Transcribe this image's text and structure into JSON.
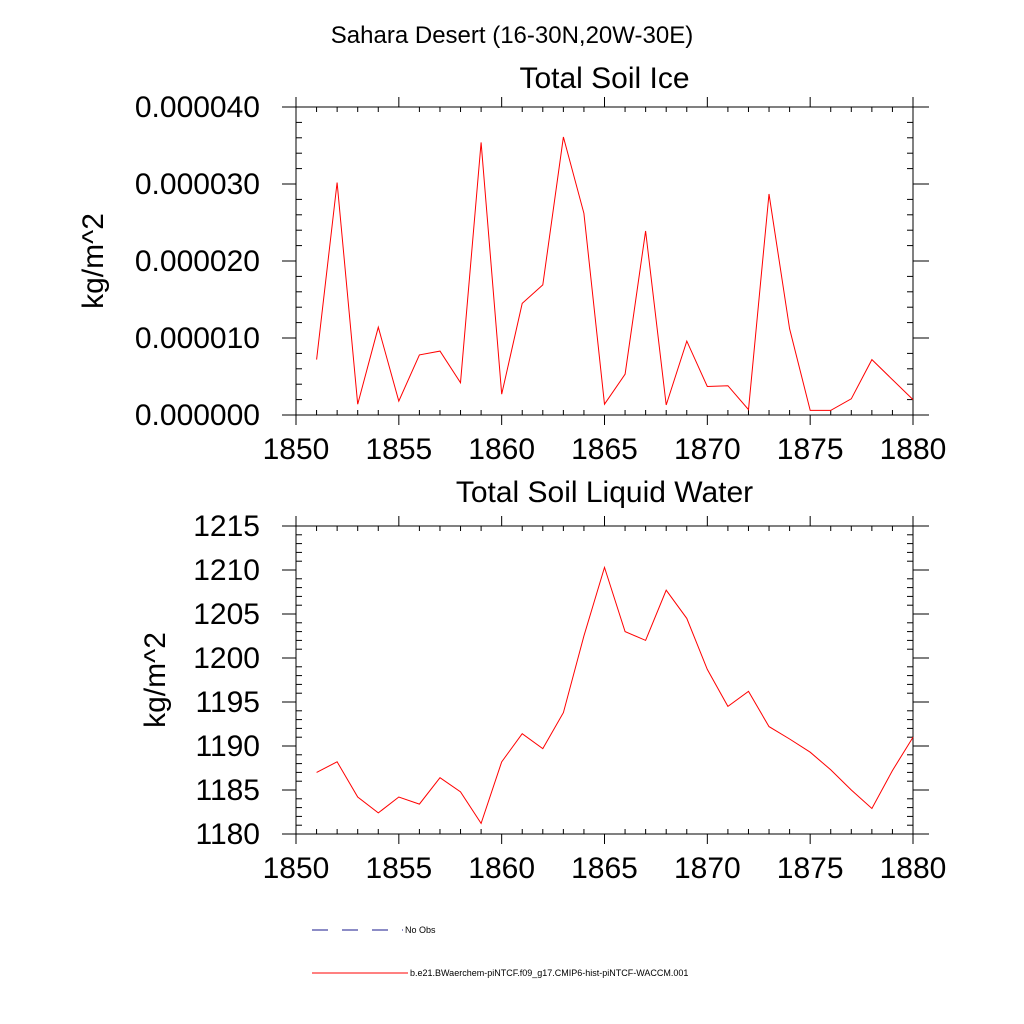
{
  "figure_title": "Sahara Desert (16-30N,20W-30E)",
  "colors": {
    "series": "#ff0000",
    "obs": "#1a1a8c",
    "axis": "#000000"
  },
  "legend": {
    "obs_label": "No Obs",
    "model_label": "b.e21.BWaerchem-piNTCF.f09_g17.CMIP6-hist-piNTCF-WACCM.001"
  },
  "chart_data": [
    {
      "type": "line",
      "title": "Total Soil Ice",
      "xlabel": "",
      "ylabel": "kg/m^2",
      "xlim": [
        1850,
        1880
      ],
      "ylim": [
        0,
        4e-05
      ],
      "xticks": [
        1850,
        1855,
        1860,
        1865,
        1870,
        1875,
        1880
      ],
      "xtick_labels": [
        "1850",
        "1855",
        "1860",
        "1865",
        "1870",
        "1875",
        "1880"
      ],
      "yticks": [
        0,
        1e-05,
        2e-05,
        3e-05,
        4e-05
      ],
      "ytick_labels": [
        "0.000000",
        "0.000010",
        "0.000020",
        "0.000030",
        "0.000040"
      ],
      "grid": false,
      "series": [
        {
          "name": "b.e21.BWaerchem-piNTCF.f09_g17.CMIP6-hist-piNTCF-WACCM.001",
          "x": [
            1851,
            1852,
            1853,
            1854,
            1855,
            1856,
            1857,
            1858,
            1859,
            1860,
            1861,
            1862,
            1863,
            1864,
            1865,
            1866,
            1867,
            1868,
            1869,
            1870,
            1871,
            1872,
            1873,
            1874,
            1875,
            1876,
            1877,
            1878,
            1879,
            1880
          ],
          "y": [
            7.2e-06,
            3.02e-05,
            1.4e-06,
            1.14e-05,
            1.8e-06,
            7.8e-06,
            8.3e-06,
            4.2e-06,
            3.54e-05,
            2.7e-06,
            1.45e-05,
            1.69e-05,
            3.61e-05,
            2.62e-05,
            1.4e-06,
            5.3e-06,
            2.39e-05,
            1.3e-06,
            9.6e-06,
            3.7e-06,
            3.8e-06,
            7e-07,
            2.87e-05,
            1.12e-05,
            6e-07,
            6e-07,
            2.1e-06,
            7.2e-06,
            4.6e-06,
            2e-06
          ]
        }
      ]
    },
    {
      "type": "line",
      "title": "Total Soil Liquid Water",
      "xlabel": "",
      "ylabel": "kg/m^2",
      "xlim": [
        1850,
        1880
      ],
      "ylim": [
        1180,
        1215
      ],
      "xticks": [
        1850,
        1855,
        1860,
        1865,
        1870,
        1875,
        1880
      ],
      "xtick_labels": [
        "1850",
        "1855",
        "1860",
        "1865",
        "1870",
        "1875",
        "1880"
      ],
      "yticks": [
        1180,
        1185,
        1190,
        1195,
        1200,
        1205,
        1210,
        1215
      ],
      "ytick_labels": [
        "1180",
        "1185",
        "1190",
        "1195",
        "1200",
        "1205",
        "1210",
        "1215"
      ],
      "grid": false,
      "series": [
        {
          "name": "b.e21.BWaerchem-piNTCF.f09_g17.CMIP6-hist-piNTCF-WACCM.001",
          "x": [
            1851,
            1852,
            1853,
            1854,
            1855,
            1856,
            1857,
            1858,
            1859,
            1860,
            1861,
            1862,
            1863,
            1864,
            1865,
            1866,
            1867,
            1868,
            1869,
            1870,
            1871,
            1872,
            1873,
            1874,
            1875,
            1876,
            1877,
            1878,
            1879,
            1880
          ],
          "y": [
            1187.0,
            1188.2,
            1184.2,
            1182.4,
            1184.2,
            1183.4,
            1186.4,
            1184.8,
            1181.2,
            1188.2,
            1191.4,
            1189.7,
            1193.8,
            1202.5,
            1210.3,
            1203.0,
            1202.0,
            1207.7,
            1204.5,
            1198.7,
            1194.5,
            1196.2,
            1192.2,
            1190.8,
            1189.3,
            1187.3,
            1185.0,
            1182.9,
            1187.2,
            1191.0
          ]
        }
      ]
    }
  ]
}
